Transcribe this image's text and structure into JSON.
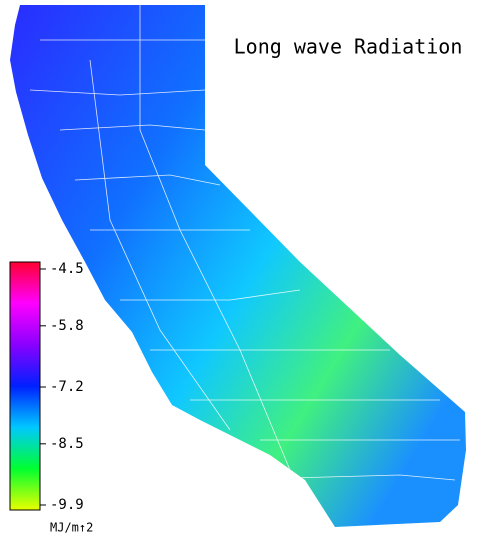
{
  "title": "Long wave Radiation",
  "colorbar": {
    "label": "MJ/m↑2",
    "lim": [
      -4.5,
      -9.9
    ],
    "ticks": [
      -4.5,
      -5.8,
      -7.2,
      -8.5,
      -9.9
    ],
    "colors": [
      "#ff0030",
      "#ff00ff",
      "#8a00ff",
      "#0020ff",
      "#00c8ff",
      "#00ff30",
      "#e8ff00"
    ]
  }
}
